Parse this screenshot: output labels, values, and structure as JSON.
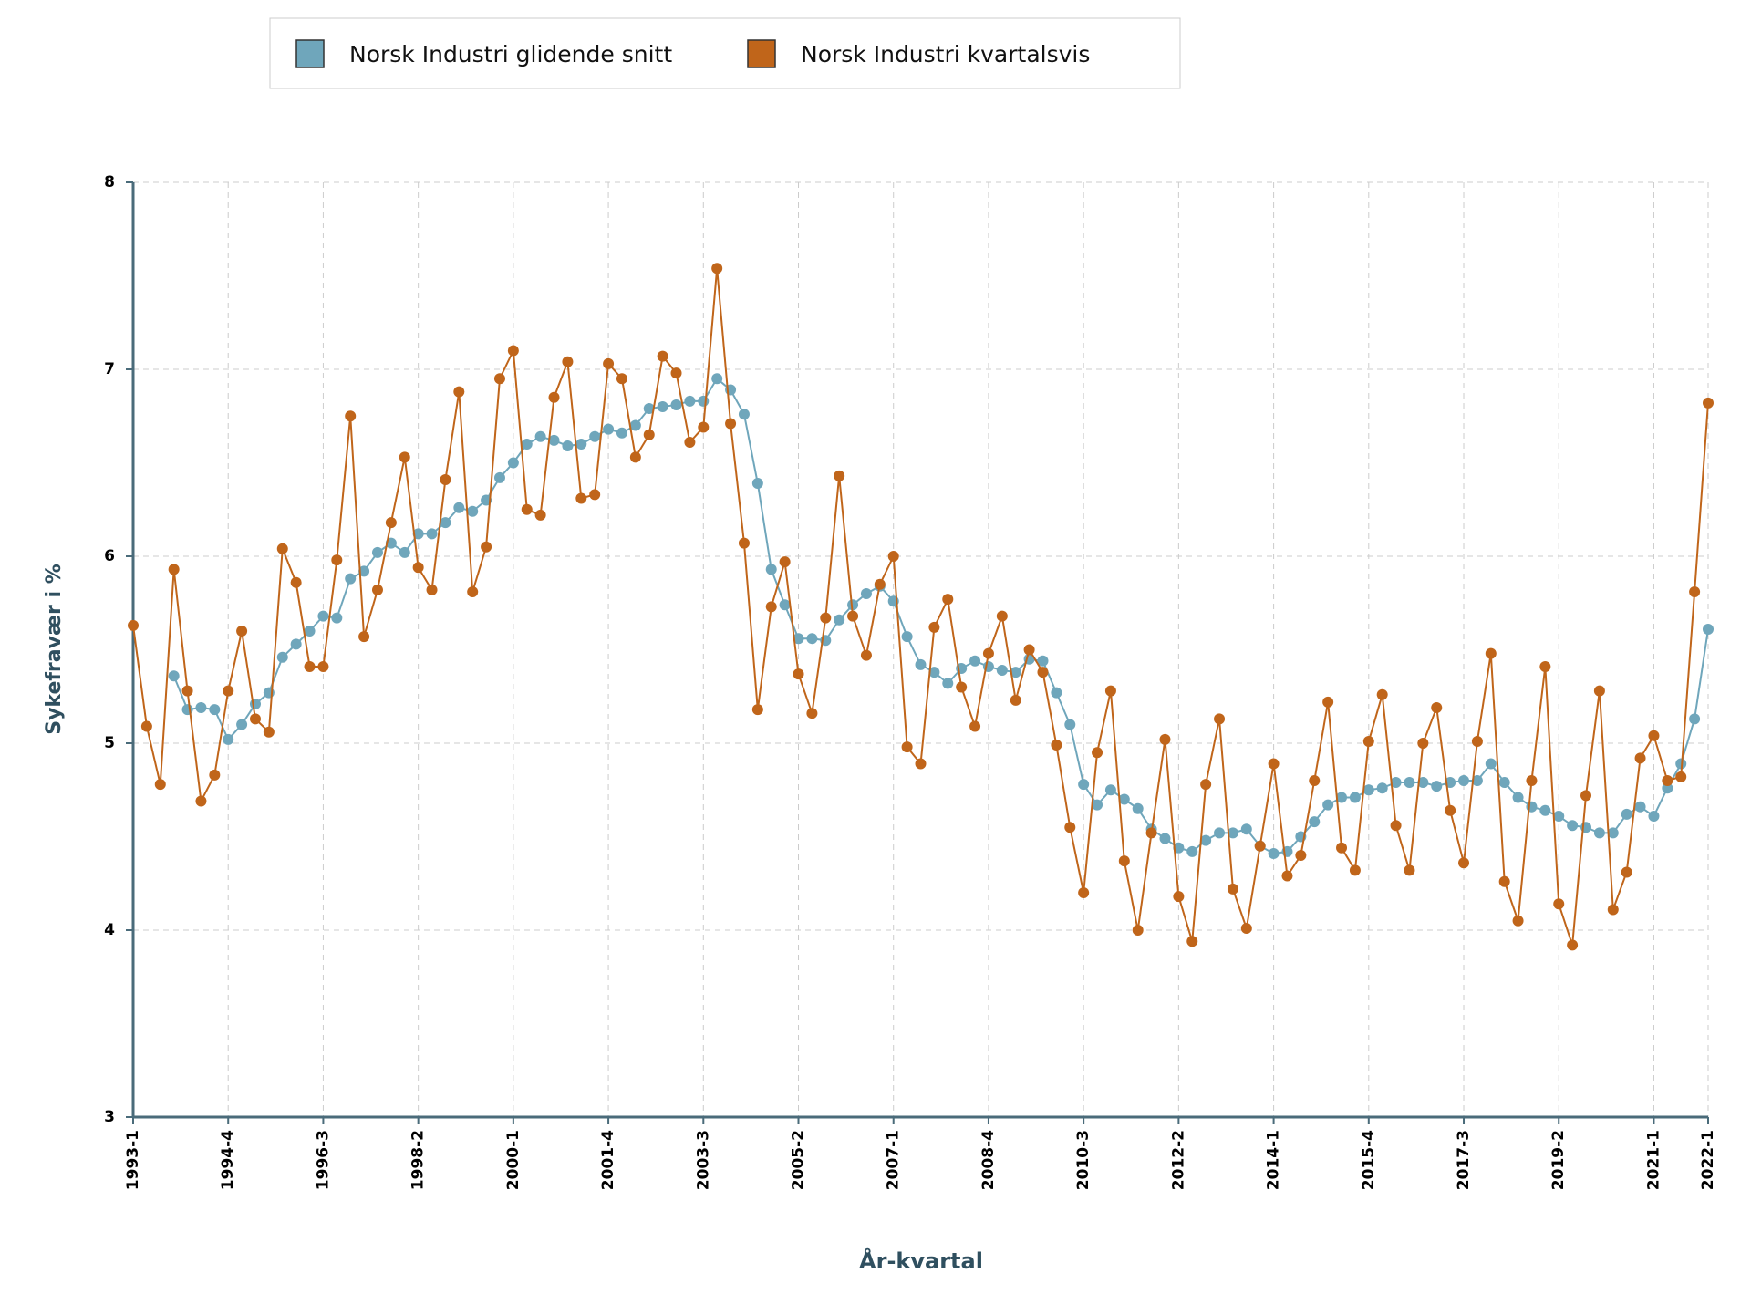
{
  "chart_data": {
    "type": "line",
    "legend": "top",
    "x_label": "År-kvartal",
    "y_label": "Sykefravær i %",
    "ylim": [
      3,
      8
    ],
    "yticks": [
      3,
      4,
      5,
      6,
      7,
      8
    ],
    "grid": true,
    "categories": [
      "1993-1",
      null,
      null,
      null,
      null,
      null,
      null,
      "1994-4",
      null,
      null,
      null,
      null,
      null,
      null,
      "1996-3",
      null,
      null,
      null,
      null,
      null,
      null,
      "1998-2",
      null,
      null,
      null,
      null,
      null,
      null,
      "2000-1",
      null,
      null,
      null,
      null,
      null,
      null,
      "2001-4",
      null,
      null,
      null,
      null,
      null,
      null,
      "2003-3",
      null,
      null,
      null,
      null,
      null,
      null,
      "2005-2",
      null,
      null,
      null,
      null,
      null,
      null,
      "2007-1",
      null,
      null,
      null,
      null,
      null,
      null,
      "2008-4",
      null,
      null,
      null,
      null,
      null,
      null,
      "2010-3",
      null,
      null,
      null,
      null,
      null,
      null,
      "2012-2",
      null,
      null,
      null,
      null,
      null,
      null,
      "2014-1",
      null,
      null,
      null,
      null,
      null,
      null,
      "2015-4",
      null,
      null,
      null,
      null,
      null,
      null,
      "2017-3",
      null,
      null,
      null,
      null,
      null,
      null,
      "2019-2",
      null,
      null,
      null,
      null,
      null,
      null,
      "2021-1",
      null,
      null,
      null,
      "2022-1"
    ],
    "series": [
      {
        "name": "Norsk Industri glidende snitt",
        "color": "#6fa6bb",
        "values": [
          null,
          null,
          null,
          5.36,
          5.18,
          5.19,
          5.18,
          5.02,
          5.1,
          5.21,
          5.27,
          5.46,
          5.53,
          5.6,
          5.68,
          5.67,
          5.88,
          5.92,
          6.02,
          6.07,
          6.02,
          6.12,
          6.12,
          6.18,
          6.26,
          6.24,
          6.3,
          6.42,
          6.5,
          6.6,
          6.64,
          6.62,
          6.59,
          6.6,
          6.64,
          6.68,
          6.66,
          6.7,
          6.79,
          6.8,
          6.81,
          6.83,
          6.83,
          6.95,
          6.89,
          6.76,
          6.39,
          5.93,
          5.74,
          5.56,
          5.56,
          5.55,
          5.66,
          5.74,
          5.8,
          5.84,
          5.76,
          5.57,
          5.42,
          5.38,
          5.32,
          5.4,
          5.44,
          5.41,
          5.39,
          5.38,
          5.45,
          5.44,
          5.27,
          5.1,
          4.78,
          4.67,
          4.75,
          4.7,
          4.65,
          4.54,
          4.49,
          4.44,
          4.42,
          4.48,
          4.52,
          4.52,
          4.54,
          4.45,
          4.41,
          4.42,
          4.5,
          4.58,
          4.67,
          4.71,
          4.71,
          4.75,
          4.76,
          4.79,
          4.79,
          4.79,
          4.77,
          4.79,
          4.8,
          4.8,
          4.89,
          4.79,
          4.71,
          4.66,
          4.64,
          4.61,
          4.56,
          4.55,
          4.52,
          4.52,
          4.62,
          4.66,
          4.61,
          4.76,
          4.89,
          5.13,
          5.61
        ]
      },
      {
        "name": "Norsk Industri kvartalsvis",
        "color": "#c0651a",
        "values": [
          5.63,
          5.09,
          4.78,
          5.93,
          5.28,
          4.69,
          4.83,
          5.28,
          5.6,
          5.13,
          5.06,
          6.04,
          5.86,
          5.41,
          5.41,
          5.98,
          6.75,
          5.57,
          5.82,
          6.18,
          6.53,
          5.94,
          5.82,
          6.41,
          6.88,
          5.81,
          6.05,
          6.95,
          7.1,
          6.25,
          6.22,
          6.85,
          7.04,
          6.31,
          6.33,
          7.03,
          6.95,
          6.53,
          6.65,
          7.07,
          6.98,
          6.61,
          6.69,
          7.54,
          6.71,
          6.07,
          5.18,
          5.73,
          5.97,
          5.37,
          5.16,
          5.67,
          6.43,
          5.68,
          5.47,
          5.85,
          6.0,
          4.98,
          4.89,
          5.62,
          5.77,
          5.3,
          5.09,
          5.48,
          5.68,
          5.23,
          5.5,
          5.38,
          4.99,
          4.55,
          4.2,
          4.95,
          5.28,
          4.37,
          4.0,
          4.52,
          5.02,
          4.18,
          3.94,
          4.78,
          5.13,
          4.22,
          4.01,
          4.45,
          4.89,
          4.29,
          4.4,
          4.8,
          5.22,
          4.44,
          4.32,
          5.01,
          5.26,
          4.56,
          4.32,
          5.0,
          5.19,
          4.64,
          4.36,
          5.01,
          5.48,
          4.26,
          4.05,
          4.8,
          5.41,
          4.14,
          3.92,
          4.72,
          5.28,
          4.11,
          4.31,
          4.92,
          5.04,
          4.8,
          4.82,
          5.81,
          6.82
        ]
      }
    ]
  }
}
